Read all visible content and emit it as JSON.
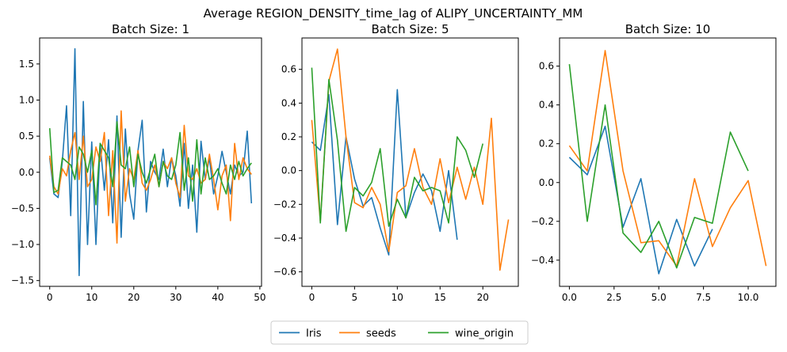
{
  "figure": {
    "suptitle": "Average REGION_DENSITY_time_lag of ALIPY_UNCERTAINTY_MM"
  },
  "colors": {
    "Iris": "#1f77b4",
    "seeds": "#ff7f0e",
    "wine_origin": "#2ca02c"
  },
  "legend": {
    "placement": "bottom-center",
    "entries": [
      "Iris",
      "seeds",
      "wine_origin"
    ]
  },
  "chart_data": [
    {
      "type": "line",
      "title": "Batch Size: 1",
      "xlim": [
        -2.4,
        50.4
      ],
      "ylim": [
        -1.58,
        1.86
      ],
      "xticks": [
        0,
        10,
        20,
        30,
        40,
        50
      ],
      "yticks": [
        -1.5,
        -1.0,
        -0.5,
        0.0,
        0.5,
        1.0,
        1.5
      ],
      "ytick_labels": [
        "−1.5",
        "−1.0",
        "−0.5",
        "0.0",
        "0.5",
        "1.0",
        "1.5"
      ],
      "series": [
        {
          "name": "Iris",
          "x": [
            0,
            1,
            2,
            3,
            4,
            5,
            6,
            7,
            8,
            9,
            10,
            11,
            12,
            13,
            14,
            15,
            16,
            17,
            18,
            19,
            20,
            21,
            22,
            23,
            24,
            25,
            26,
            27,
            28,
            29,
            30,
            31,
            32,
            33,
            34,
            35,
            36,
            37,
            38,
            39,
            40,
            41,
            42,
            43,
            44,
            45,
            46,
            47,
            48
          ],
          "values": [
            0.2,
            -0.3,
            -0.35,
            0.15,
            0.92,
            -0.6,
            1.71,
            -1.43,
            0.98,
            -1.0,
            0.42,
            -1.0,
            0.4,
            -0.25,
            0.45,
            -0.7,
            0.78,
            -0.9,
            0.6,
            -0.3,
            -0.65,
            0.3,
            0.72,
            -0.55,
            0.15,
            0.0,
            -0.1,
            0.32,
            -0.2,
            0.2,
            -0.05,
            -0.47,
            0.4,
            -0.5,
            0.1,
            -0.83,
            0.43,
            -0.1,
            0.2,
            -0.3,
            -0.05,
            0.29,
            0.0,
            -0.3,
            0.1,
            -0.05,
            0.0,
            0.57,
            -0.43
          ]
        },
        {
          "name": "seeds",
          "x": [
            0,
            1,
            2,
            3,
            4,
            5,
            6,
            7,
            8,
            9,
            10,
            11,
            12,
            13,
            14,
            15,
            16,
            17,
            18,
            19,
            20,
            21,
            22,
            23,
            24,
            25,
            26,
            27,
            28,
            29,
            30,
            31,
            32,
            33,
            34,
            35,
            36,
            37,
            38,
            39,
            40,
            41,
            42,
            43,
            44,
            45,
            46,
            47,
            48
          ],
          "values": [
            0.23,
            -0.2,
            -0.3,
            0.05,
            -0.05,
            0.3,
            0.55,
            -0.1,
            0.5,
            -0.2,
            -0.1,
            0.35,
            0.15,
            0.55,
            -0.6,
            0.3,
            -0.98,
            0.85,
            -0.4,
            0.05,
            -0.1,
            0.3,
            -0.15,
            -0.25,
            -0.1,
            0.1,
            -0.2,
            0.15,
            0.05,
            0.2,
            -0.15,
            -0.35,
            0.65,
            -0.05,
            -0.1,
            0.05,
            -0.15,
            -0.1,
            0.25,
            -0.1,
            -0.52,
            -0.05,
            0.1,
            -0.67,
            0.4,
            -0.1,
            0.2,
            0.05,
            -0.03
          ]
        },
        {
          "name": "wine_origin",
          "x": [
            0,
            1,
            2,
            3,
            4,
            5,
            6,
            7,
            8,
            9,
            10,
            11,
            12,
            13,
            14,
            15,
            16,
            17,
            18,
            19,
            20,
            21,
            22,
            23,
            24,
            25,
            26,
            27,
            28,
            29,
            30,
            31,
            32,
            33,
            34,
            35,
            36,
            37,
            38,
            39,
            40,
            41,
            42,
            43,
            44,
            45,
            46,
            47,
            48
          ],
          "values": [
            0.61,
            -0.28,
            -0.25,
            0.2,
            0.15,
            0.1,
            -0.1,
            0.35,
            0.25,
            0.0,
            0.3,
            -0.45,
            0.4,
            0.3,
            0.2,
            -0.2,
            0.7,
            0.1,
            0.05,
            0.35,
            -0.2,
            0.25,
            0.0,
            -0.15,
            0.05,
            0.25,
            -0.2,
            0.15,
            -0.05,
            -0.1,
            0.1,
            0.55,
            -0.25,
            0.2,
            -0.4,
            0.45,
            -0.3,
            0.2,
            -0.1,
            -0.05,
            0.05,
            -0.15,
            -0.3,
            0.1,
            -0.1,
            0.15,
            -0.05,
            0.05,
            0.13
          ]
        }
      ]
    },
    {
      "type": "line",
      "title": "Batch Size: 5",
      "xlim": [
        -1.15,
        24.15
      ],
      "ylim": [
        -0.686,
        0.786
      ],
      "xticks": [
        0,
        5,
        10,
        15,
        20
      ],
      "yticks": [
        -0.6,
        -0.4,
        -0.2,
        0.0,
        0.2,
        0.4,
        0.6
      ],
      "ytick_labels": [
        "−0.6",
        "−0.4",
        "−0.2",
        "0.0",
        "0.2",
        "0.4",
        "0.6"
      ],
      "series": [
        {
          "name": "Iris",
          "x": [
            0,
            1,
            2,
            3,
            4,
            5,
            6,
            7,
            8,
            9,
            10,
            11,
            12,
            13,
            14,
            15,
            16,
            17
          ],
          "values": [
            0.17,
            0.12,
            0.45,
            -0.32,
            0.2,
            -0.05,
            -0.21,
            -0.16,
            -0.34,
            -0.5,
            0.48,
            -0.28,
            -0.13,
            -0.02,
            -0.12,
            -0.36,
            0.0,
            -0.41
          ]
        },
        {
          "name": "seeds",
          "x": [
            0,
            1,
            2,
            3,
            4,
            5,
            6,
            7,
            8,
            9,
            10,
            11,
            12,
            13,
            14,
            15,
            16,
            17,
            18,
            19,
            20,
            21,
            22,
            23
          ],
          "values": [
            0.3,
            -0.3,
            0.53,
            0.72,
            0.2,
            -0.19,
            -0.22,
            -0.1,
            -0.2,
            -0.48,
            -0.13,
            -0.09,
            0.13,
            -0.1,
            -0.2,
            0.07,
            -0.19,
            0.02,
            -0.17,
            0.02,
            -0.2,
            0.31,
            -0.59,
            -0.29
          ]
        },
        {
          "name": "wine_origin",
          "x": [
            0,
            1,
            2,
            3,
            4,
            5,
            6,
            7,
            8,
            9,
            10,
            11,
            12,
            13,
            14,
            15,
            16,
            17,
            18,
            19,
            20
          ],
          "values": [
            0.61,
            -0.31,
            0.54,
            0.18,
            -0.36,
            -0.1,
            -0.15,
            -0.07,
            0.13,
            -0.33,
            -0.17,
            -0.28,
            -0.04,
            -0.12,
            -0.1,
            -0.12,
            -0.31,
            0.2,
            0.12,
            -0.04,
            0.16
          ]
        }
      ]
    },
    {
      "type": "line",
      "title": "Batch Size: 10",
      "xlim": [
        -0.55,
        11.55
      ],
      "ylim": [
        -0.535,
        0.745
      ],
      "xticks": [
        0.0,
        2.5,
        5.0,
        7.5,
        10.0
      ],
      "yticks": [
        -0.4,
        -0.2,
        0.0,
        0.2,
        0.4,
        0.6
      ],
      "ytick_labels": [
        "−0.4",
        "−0.2",
        "0.0",
        "0.2",
        "0.4",
        "0.6"
      ],
      "series": [
        {
          "name": "Iris",
          "x": [
            0,
            1,
            2,
            3,
            4,
            5,
            6,
            7,
            8
          ],
          "values": [
            0.13,
            0.04,
            0.29,
            -0.23,
            0.02,
            -0.47,
            -0.19,
            -0.43,
            -0.24
          ]
        },
        {
          "name": "seeds",
          "x": [
            0,
            1,
            2,
            3,
            4,
            5,
            6,
            7,
            8,
            9,
            10,
            11
          ],
          "values": [
            0.19,
            0.06,
            0.68,
            0.06,
            -0.31,
            -0.3,
            -0.43,
            0.02,
            -0.33,
            -0.13,
            0.01,
            -0.43
          ]
        },
        {
          "name": "wine_origin",
          "x": [
            0,
            1,
            2,
            3,
            4,
            5,
            6,
            7,
            8,
            9,
            10
          ],
          "values": [
            0.61,
            -0.2,
            0.4,
            -0.26,
            -0.36,
            -0.2,
            -0.44,
            -0.18,
            -0.21,
            0.26,
            0.06
          ]
        }
      ]
    }
  ]
}
